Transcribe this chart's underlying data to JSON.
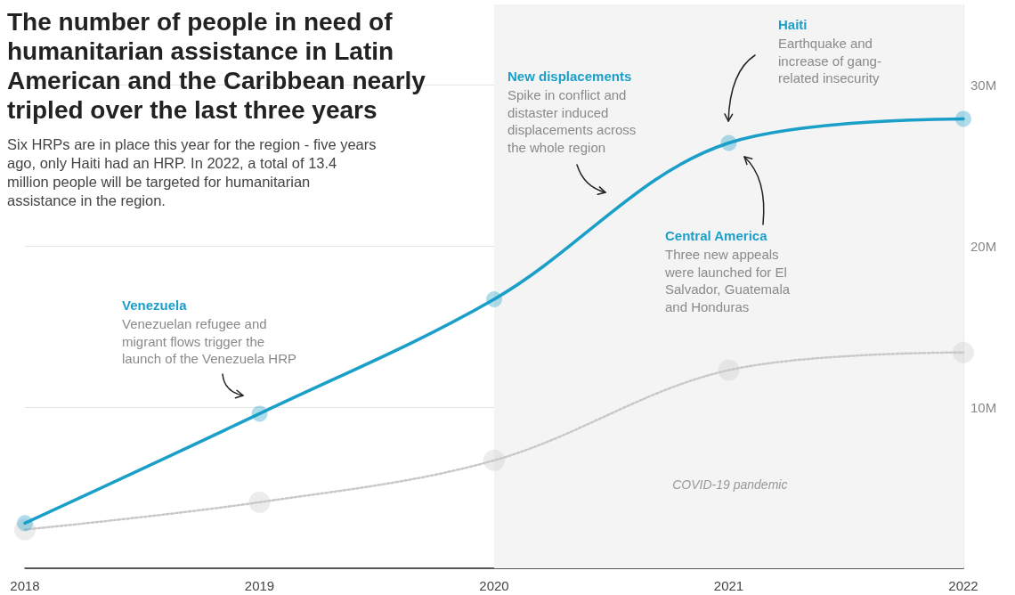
{
  "chart_data": {
    "type": "line",
    "title": "The number of people in need of humanitarian assistance in Latin American and the Caribbean nearly tripled over the last three years",
    "subtitle": "Six HRPs are in place this year for the region - five years ago, only Haiti had an HRP. In 2022, a total of 13.4 million people will be targeted for humanitarian assistance in the region.",
    "x": [
      2018,
      2019,
      2020,
      2021,
      2022
    ],
    "xlim": [
      2018,
      2022
    ],
    "xticks": [
      2018,
      2019,
      2020,
      2021,
      2022
    ],
    "ylim": [
      0,
      35
    ],
    "yticks": [
      {
        "value": 10,
        "label": "10M"
      },
      {
        "value": 20,
        "label": "20M"
      },
      {
        "value": 30,
        "label": "30M"
      }
    ],
    "grid": "y",
    "marker": "circle",
    "series": [
      {
        "color": "#1a9fc9",
        "values": [
          2.8,
          9.6,
          16.7,
          26.4,
          27.9
        ],
        "line_style": "solid"
      },
      {
        "color": "#c8c8c8",
        "values": [
          2.4,
          4.1,
          6.7,
          12.3,
          13.4
        ],
        "line_style": "dotted"
      }
    ],
    "bands": [
      {
        "axis": "x",
        "from": 2020,
        "to": 2022,
        "label": "COVID-19 pandemic",
        "color": "#f4f4f4"
      }
    ],
    "annotations": [
      "Venezuela\nVenezuelan refugee and\nmigrant flows trigger the\nlaunch of the Venezuela HRP",
      "New displacements\nSpike in conflict and\ndistaster induced\ndisplacements across\nthe whole region",
      "Haiti\nEarthquake and\nincrease of gang-\nrelated insecurity",
      "Central America\nThree new appeals\nwere launched for El\nSalvador, Guatemala\nand Honduras"
    ]
  }
}
